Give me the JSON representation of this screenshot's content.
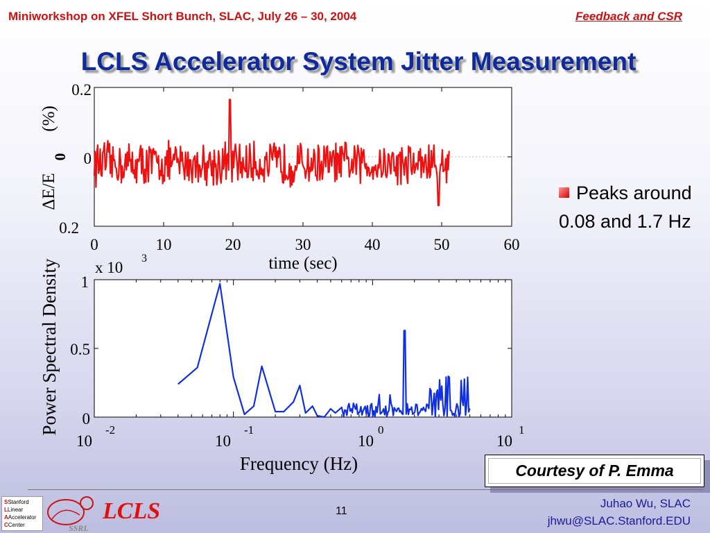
{
  "header": {
    "left": "Miniworkshop on XFEL Short Bunch, SLAC, July 26 – 30, 2004",
    "right": "Feedback and CSR"
  },
  "title": "LCLS Accelerator System Jitter Measurement",
  "bullet": "Peaks around 0.08 and 1.7 Hz",
  "courtesy": "Courtesy of P. Emma",
  "page_number": "11",
  "footer": {
    "name": "Juhao Wu, SLAC",
    "email": "jhwu@SLAC.Stanford.EDU",
    "logo_slac_lines": [
      "Stanford",
      "Linear",
      "Accelerator",
      "Center"
    ],
    "logo_ssrl": "SSRL",
    "logo_lcls": "LCLS"
  },
  "colors": {
    "accent_red": "#cc1111",
    "title_blue": "#0f2a9c",
    "series_top": "#ee1111",
    "series_bottom": "#1030e0"
  },
  "chart_data": [
    {
      "type": "line",
      "xlabel": "time (sec)",
      "ylabel_parts": [
        "ΔE/E",
        "0",
        "(%)"
      ],
      "xlim": [
        0,
        60
      ],
      "ylim": [
        -0.2,
        0.2
      ],
      "xticks": [
        "0",
        "10",
        "20",
        "30",
        "40",
        "50",
        "60"
      ],
      "yticks": [
        "0.2",
        "0",
        "0.2"
      ],
      "series": [
        {
          "t_end": 51,
          "mean": -0.02,
          "amplitude": 0.055,
          "max": 0.165,
          "min": -0.14
        }
      ]
    },
    {
      "type": "line",
      "xscale": "log",
      "xlabel": "Frequency (Hz)",
      "ylabel": "Power Spectral Density",
      "multiplier": "x 10",
      "multiplier_exp": "3",
      "ylim": [
        0,
        1
      ],
      "xlim": [
        0.01,
        10
      ],
      "yticks": [
        "1",
        "0.5",
        "0"
      ],
      "xticks": [
        {
          "base": "10",
          "exp": "-2"
        },
        {
          "base": "10",
          "exp": "-1"
        },
        {
          "base": "10",
          "exp": "0"
        },
        {
          "base": "10",
          "exp": "1"
        }
      ],
      "series": [
        {
          "x": [
            0.04,
            0.055,
            0.08,
            0.1,
            0.12,
            0.14,
            0.16,
            0.2,
            0.23,
            0.27,
            0.3,
            0.33,
            0.37,
            0.4,
            0.45,
            0.5,
            0.54,
            0.6
          ],
          "y": [
            0.24,
            0.36,
            0.97,
            0.29,
            0.02,
            0.08,
            0.37,
            0.04,
            0.04,
            0.11,
            0.23,
            0.03,
            0.08,
            0.01,
            0.0,
            0.06,
            0.03,
            0.07
          ],
          "peaks": [
            {
              "x": 0.08,
              "y": 0.97
            },
            {
              "x": 1.7,
              "y": 0.63
            }
          ]
        }
      ]
    }
  ]
}
